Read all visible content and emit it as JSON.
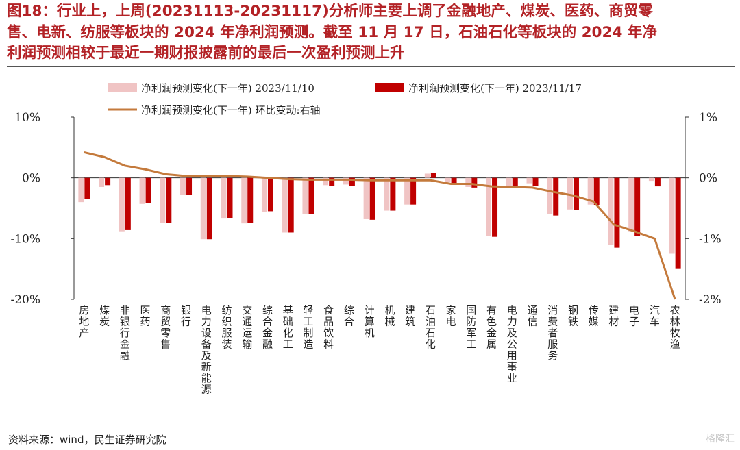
{
  "title_lines": [
    "图18：行业上，上周(20231113-20231117)分析师主要上调了金融地产、煤炭、医药、商贸零",
    "售、电新、纺服等板块的 2024 年净利润预测。截至 11 月 17 日，石油石化等板块的 2024 年净",
    "利润预测相较于最近一期财报披露前的最后一次盈利预测上升"
  ],
  "source": "资料来源：wind，民生证券研究院",
  "watermark": "格隆汇",
  "colors": {
    "series1": "#f0c4c4",
    "series2": "#c00000",
    "line": "#c47a3c",
    "title": "#b32226"
  },
  "chart_data": {
    "type": "bar",
    "categories": [
      "房地产",
      "煤炭",
      "非银行金融",
      "医药",
      "商贸零售",
      "银行",
      "电力设备及新能源",
      "纺织服装",
      "交通运输",
      "综合金融",
      "基础化工",
      "轻工制造",
      "食品饮料",
      "综合",
      "计算机",
      "机械",
      "建筑",
      "石油石化",
      "家电",
      "国防军工",
      "有色金属",
      "电力及公用事业",
      "通信",
      "消费者服务",
      "钢铁",
      "传媒",
      "建材",
      "电子",
      "汽车",
      "农林牧渔"
    ],
    "series": [
      {
        "name": "净利润预测变化(下一年) 2023/11/10",
        "values": [
          -4.0,
          -1.5,
          -8.8,
          -4.3,
          -7.4,
          -2.8,
          -10.1,
          -6.7,
          -7.5,
          -5.6,
          -9.0,
          -5.9,
          -1.2,
          -1.1,
          -6.8,
          -5.4,
          -4.4,
          0.7,
          -0.6,
          -1.5,
          -9.6,
          -1.5,
          -0.9,
          -5.9,
          -5.2,
          -4.4,
          -11.0,
          -8.8,
          -0.5,
          -12.5
        ],
        "axis": "left"
      },
      {
        "name": "净利润预测变化(下一年) 2023/11/17",
        "values": [
          -3.5,
          -1.2,
          -8.6,
          -4.1,
          -7.4,
          -2.8,
          -10.1,
          -6.6,
          -7.4,
          -5.5,
          -9.0,
          -6.0,
          -1.3,
          -1.3,
          -6.9,
          -5.4,
          -4.4,
          0.8,
          -1.1,
          -1.6,
          -9.7,
          -1.4,
          -1.3,
          -6.2,
          -5.3,
          -4.5,
          -11.5,
          -9.6,
          -1.4,
          -15.0
        ],
        "axis": "left"
      },
      {
        "name": "净利润预测变化(下一年) 环比变动:右轴",
        "values": [
          0.42,
          0.34,
          0.2,
          0.14,
          0.06,
          0.03,
          0.03,
          0.03,
          0.02,
          0.0,
          -0.02,
          -0.03,
          -0.03,
          -0.03,
          -0.04,
          -0.04,
          -0.04,
          -0.04,
          -0.1,
          -0.1,
          -0.14,
          -0.15,
          -0.16,
          -0.23,
          -0.29,
          -0.39,
          -0.77,
          -0.88,
          -1.0,
          -2.0
        ],
        "axis": "right",
        "type": "line"
      }
    ],
    "y_left": {
      "min": -20,
      "max": 10,
      "ticks": [
        10,
        0,
        -10,
        -20
      ],
      "tick_labels": [
        "10%",
        "0%",
        "-10%",
        "-20%"
      ]
    },
    "y_right": {
      "min": -2,
      "max": 1,
      "ticks": [
        1,
        0,
        -1,
        -2
      ],
      "tick_labels": [
        "1%",
        "0%",
        "-1%",
        "-2%"
      ]
    },
    "legend": {
      "items": [
        "净利润预测变化(下一年) 2023/11/10",
        "净利润预测变化(下一年) 2023/11/17",
        "净利润预测变化(下一年) 环比变动:右轴"
      ],
      "placement": "top"
    },
    "grid": false
  }
}
